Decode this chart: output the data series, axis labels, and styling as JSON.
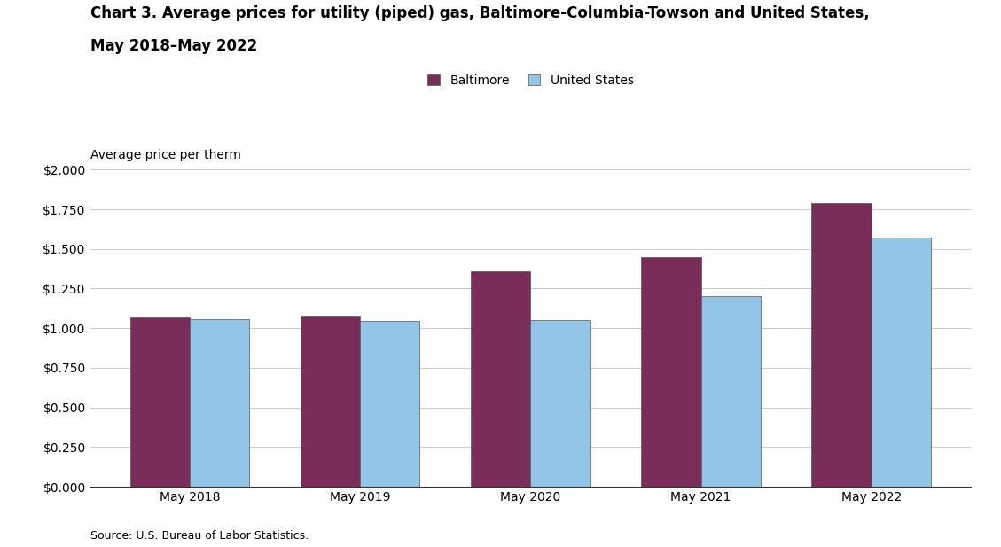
{
  "title_line1": "Chart 3. Average prices for utility (piped) gas, Baltimore-Columbia-Towson and United States,",
  "title_line2": "May 2018–May 2022",
  "ylabel": "Average price per therm",
  "source": "Source: U.S. Bureau of Labor Statistics.",
  "categories": [
    "May 2018",
    "May 2019",
    "May 2020",
    "May 2021",
    "May 2022"
  ],
  "baltimore": [
    1.067,
    1.074,
    1.36,
    1.448,
    1.79
  ],
  "us": [
    1.057,
    1.047,
    1.054,
    1.205,
    1.573
  ],
  "baltimore_color": "#7B2D5A",
  "us_color": "#92C5E8",
  "bar_edge_color": "#555555",
  "background_color": "#ffffff",
  "ylim": [
    0,
    2.0
  ],
  "yticks": [
    0.0,
    0.25,
    0.5,
    0.75,
    1.0,
    1.25,
    1.5,
    1.75,
    2.0
  ],
  "legend_labels": [
    "Baltimore",
    "United States"
  ],
  "bar_width": 0.35,
  "title_fontsize": 12,
  "axis_fontsize": 10,
  "tick_fontsize": 10,
  "legend_fontsize": 10,
  "source_fontsize": 9
}
